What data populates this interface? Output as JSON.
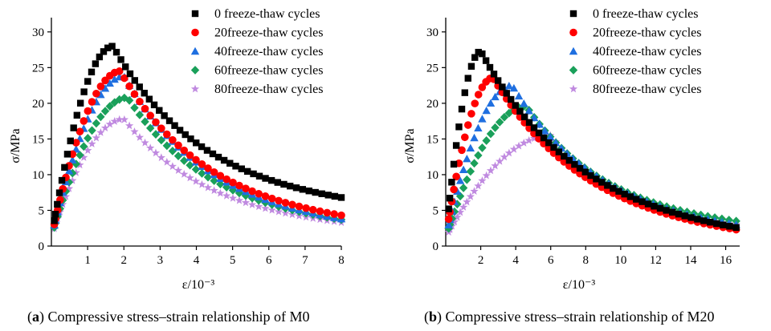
{
  "colors": {
    "s0": "#000000",
    "s20": "#ff0000",
    "s40": "#1f6fe0",
    "s60": "#1aa05a",
    "s80": "#c08ae0"
  },
  "chart_data": [
    {
      "type": "scatter",
      "title": "",
      "xlabel": "ε/10⁻³",
      "ylabel": "σ/MPa",
      "xlim": [
        0,
        8
      ],
      "ylim": [
        0,
        32
      ],
      "xticks": [
        "1",
        "2",
        "3",
        "4",
        "5",
        "6",
        "7",
        "8"
      ],
      "yticks": [
        "0",
        "5",
        "10",
        "15",
        "20",
        "25",
        "30"
      ],
      "legend_position": "top-right",
      "caption_letter": "a",
      "caption_text": "Compressive stress–strain relationship of M0",
      "series": [
        {
          "name": "0 freeze-thaw cycles",
          "marker": "square",
          "color": "#000000",
          "peak": [
            1.7,
            28.0
          ],
          "tail_end": [
            8.0,
            6.8
          ],
          "points": 60
        },
        {
          "name": "20freeze-thaw cycles",
          "marker": "circle",
          "color": "#ff0000",
          "peak": [
            1.9,
            24.5
          ],
          "tail_end": [
            8.0,
            4.3
          ],
          "points": 55
        },
        {
          "name": "40freeze-thaw cycles",
          "marker": "triangle",
          "color": "#1f6fe0",
          "peak": [
            2.0,
            23.8
          ],
          "tail_end": [
            8.0,
            3.8
          ],
          "points": 55
        },
        {
          "name": "60freeze-thaw cycles",
          "marker": "diamond",
          "color": "#1aa05a",
          "peak": [
            2.1,
            20.8
          ],
          "tail_end": [
            8.0,
            3.7
          ],
          "points": 55
        },
        {
          "name": "80freeze-thaw cycles",
          "marker": "star",
          "color": "#c08ae0",
          "peak": [
            2.0,
            17.8
          ],
          "tail_end": [
            8.0,
            3.3
          ],
          "points": 55
        }
      ]
    },
    {
      "type": "scatter",
      "title": "",
      "xlabel": "ε/10⁻³",
      "ylabel": "σ/MPa",
      "xlim": [
        0,
        16.8
      ],
      "ylim": [
        0,
        32
      ],
      "xticks": [
        "2",
        "4",
        "6",
        "8",
        "10",
        "12",
        "14",
        "16"
      ],
      "yticks": [
        "0",
        "5",
        "10",
        "15",
        "20",
        "25",
        "30"
      ],
      "legend_position": "top-right",
      "caption_letter": "b",
      "caption_text": "Compressive stress–strain relationship of M20",
      "series": [
        {
          "name": "0 freeze-thaw cycles",
          "marker": "square",
          "color": "#000000",
          "peak": [
            2.0,
            27.3
          ],
          "tail_end": [
            16.6,
            2.6
          ],
          "points": 60
        },
        {
          "name": "20freeze-thaw cycles",
          "marker": "circle",
          "color": "#ff0000",
          "peak": [
            2.7,
            23.6
          ],
          "tail_end": [
            16.6,
            2.3
          ],
          "points": 60
        },
        {
          "name": "40freeze-thaw cycles",
          "marker": "triangle",
          "color": "#1f6fe0",
          "peak": [
            3.8,
            22.5
          ],
          "tail_end": [
            16.6,
            3.0
          ],
          "points": 55
        },
        {
          "name": "60freeze-thaw cycles",
          "marker": "diamond",
          "color": "#1aa05a",
          "peak": [
            4.6,
            19.6
          ],
          "tail_end": [
            16.6,
            3.5
          ],
          "points": 55
        },
        {
          "name": "80freeze-thaw cycles",
          "marker": "star",
          "color": "#c08ae0",
          "peak": [
            6.0,
            15.5
          ],
          "tail_end": [
            16.6,
            3.0
          ],
          "points": 55
        }
      ]
    }
  ]
}
